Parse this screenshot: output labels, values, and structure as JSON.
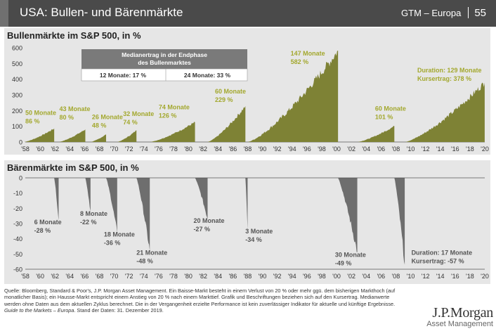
{
  "header": {
    "title": "USA: Bullen- und Bärenmärkte",
    "source_label": "GTM – Europa",
    "page_number": "55"
  },
  "chart_data": [
    {
      "type": "area",
      "title": "Bullenmärkte im S&P 500, in %",
      "ylim": [
        0,
        600
      ],
      "yticks": [
        0,
        100,
        200,
        300,
        400,
        500,
        600
      ],
      "xticks": [
        "'58",
        "'60",
        "'62",
        "'64",
        "'66",
        "'68",
        "'70",
        "'72",
        "'74",
        "'76",
        "'78",
        "'80",
        "'82",
        "'84",
        "'86",
        "'88",
        "'90",
        "'92",
        "'94",
        "'96",
        "'98",
        "'00",
        "'02",
        "'04",
        "'06",
        "'08",
        "'10",
        "'12",
        "'14",
        "'16",
        "'18",
        "'20"
      ],
      "grid": false,
      "color": "#7e8235",
      "label_color": "#a3a82e",
      "series": [
        {
          "start": 1957.8,
          "end": 1961.9,
          "peak": 86,
          "duration_label": "50 Monate",
          "return_label": "86 %"
        },
        {
          "start": 1962.5,
          "end": 1966.1,
          "peak": 80,
          "duration_label": "43 Monate",
          "return_label": "80 %"
        },
        {
          "start": 1966.8,
          "end": 1968.9,
          "peak": 48,
          "duration_label": "26 Monate",
          "return_label": "48 %"
        },
        {
          "start": 1970.4,
          "end": 1973.0,
          "peak": 74,
          "duration_label": "32 Monate",
          "return_label": "74 %"
        },
        {
          "start": 1974.8,
          "end": 1980.9,
          "peak": 126,
          "duration_label": "74 Monate",
          "return_label": "126 %"
        },
        {
          "start": 1982.6,
          "end": 1987.7,
          "peak": 229,
          "duration_label": "60 Monate",
          "return_label": "229 %"
        },
        {
          "start": 1988.0,
          "end": 2000.2,
          "peak": 582,
          "duration_label": "147 Monate",
          "return_label": "582 %"
        },
        {
          "start": 2002.8,
          "end": 2007.8,
          "peak": 101,
          "duration_label": "60 Monate",
          "return_label": "101 %"
        },
        {
          "start": 2009.2,
          "end": 2019.99,
          "peak": 378,
          "duration_label": "Duration: 129 Monate",
          "return_label": "Kursertrag: 378 %"
        }
      ],
      "info_box": {
        "title": "Medianertrag in der Endphase des Bullenmarktes",
        "cells": [
          "12 Monate: 17 %",
          "24 Monate: 33 %"
        ]
      }
    },
    {
      "type": "area",
      "title": "Bärenmärkte im S&P 500, in %",
      "ylim": [
        -60,
        0
      ],
      "yticks": [
        0,
        -10,
        -20,
        -30,
        -40,
        -50,
        -60
      ],
      "xticks": [
        "'58",
        "'60",
        "'62",
        "'64",
        "'66",
        "'68",
        "'70",
        "'72",
        "'74",
        "'76",
        "'78",
        "'80",
        "'82",
        "'84",
        "'86",
        "'88",
        "'90",
        "'92",
        "'94",
        "'96",
        "'98",
        "'00",
        "'02",
        "'04",
        "'06",
        "'08",
        "'10",
        "'12",
        "'14",
        "'16",
        "'18",
        "'20"
      ],
      "grid": false,
      "color": "#6e6e6e",
      "label_color": "#555555",
      "series": [
        {
          "start": 1961.9,
          "end": 1962.5,
          "trough": -28,
          "duration_label": "6 Monate",
          "return_label": "-28 %"
        },
        {
          "start": 1966.1,
          "end": 1966.8,
          "trough": -22,
          "duration_label": "8 Monate",
          "return_label": "-22 %"
        },
        {
          "start": 1968.9,
          "end": 1970.4,
          "trough": -36,
          "duration_label": "18 Monate",
          "return_label": "-36 %"
        },
        {
          "start": 1973.0,
          "end": 1974.8,
          "trough": -48,
          "duration_label": "21 Monate",
          "return_label": "-48 %"
        },
        {
          "start": 1980.9,
          "end": 1982.6,
          "trough": -27,
          "duration_label": "20 Monate",
          "return_label": "-27 %"
        },
        {
          "start": 1987.7,
          "end": 1988.0,
          "trough": -34,
          "duration_label": "3 Monate",
          "return_label": "-34 %"
        },
        {
          "start": 2000.2,
          "end": 2002.8,
          "trough": -49,
          "duration_label": "30 Monate",
          "return_label": "-49 %"
        },
        {
          "start": 2007.8,
          "end": 2009.2,
          "trough": -57,
          "duration_label": "Duration: 17 Monate",
          "return_label": "Kursertrag: -57 %"
        }
      ]
    }
  ],
  "footnote": {
    "text": "Quelle: Bloomberg, Standard & Poor's, J.P. Morgan Asset Management. Ein Baisse-Markt besteht in einem Verlust von 20 % oder mehr ggü. dem bisherigen Markthoch (auf monatlicher Basis); ein Hausse-Markt entspricht einem Anstieg von 20 % nach einem Markttief. Grafik und Beschriftungen beziehen sich auf den Kursertrag. Medianwerte werden ohne Daten aus dem aktuellen Zyklus berechnet. Die in der Vergangenheit erzielte Performance ist kein zuverlässiger Indikator für aktuelle und künftige Ergebnisse. ",
    "guide": "Guide to the Markets – Europa",
    "date": ". Stand der Daten: 31. Dezember 2019."
  },
  "logo": {
    "main": "J.P.Morgan",
    "sub": "Asset Management"
  }
}
